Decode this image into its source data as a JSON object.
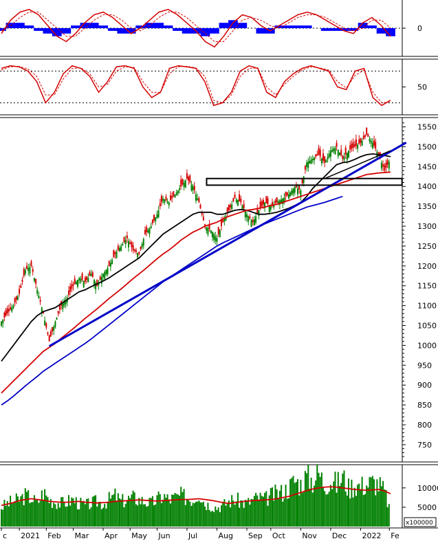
{
  "chart_data": [
    {
      "panel": "macd",
      "type": "line+bar",
      "y_ticks": [
        {
          "label": "0",
          "value": 0
        }
      ],
      "ylim": [
        -10,
        10
      ],
      "series": [
        {
          "role": "macd",
          "color": "#d40000",
          "values": [
            -2,
            3,
            6,
            7,
            5,
            1,
            -3,
            -5,
            -2,
            2,
            5,
            6,
            4,
            1,
            -2,
            0,
            3,
            6,
            7,
            5,
            2,
            -1,
            -5,
            -7,
            -3,
            2,
            5,
            4,
            1,
            -1,
            1,
            3,
            5,
            6,
            5,
            3,
            1,
            -1,
            -2,
            2,
            4,
            1,
            -3
          ]
        },
        {
          "role": "signal",
          "color": "#d40000",
          "dashed": true,
          "values": [
            -1,
            1,
            4,
            6,
            6,
            3,
            0,
            -3,
            -3,
            0,
            3,
            5,
            5,
            3,
            0,
            -1,
            1,
            4,
            6,
            6,
            4,
            1,
            -2,
            -5,
            -5,
            -1,
            3,
            4,
            3,
            1,
            0,
            2,
            4,
            5,
            5,
            4,
            2,
            0,
            -1,
            0,
            3,
            3,
            0
          ]
        },
        {
          "role": "histogram",
          "color": "#0000ff",
          "values": [
            -1,
            2,
            2,
            1,
            -1,
            -2,
            -3,
            -2,
            1,
            2,
            2,
            1,
            -1,
            -2,
            -2,
            1,
            2,
            2,
            1,
            -1,
            -2,
            -2,
            -3,
            -2,
            2,
            3,
            2,
            0,
            -2,
            -2,
            1,
            1,
            1,
            1,
            0,
            -1,
            -1,
            -1,
            -1,
            2,
            1,
            -2,
            -3
          ]
        }
      ]
    },
    {
      "panel": "stochastic",
      "type": "line",
      "y_ticks": [
        {
          "label": "50",
          "value": 50
        }
      ],
      "ylim": [
        0,
        100
      ],
      "reference_lines": [
        80,
        20
      ],
      "series": [
        {
          "role": "k",
          "color": "#d40000",
          "values": [
            85,
            90,
            88,
            80,
            60,
            20,
            40,
            75,
            90,
            85,
            70,
            40,
            60,
            88,
            90,
            85,
            50,
            30,
            40,
            85,
            90,
            88,
            85,
            60,
            15,
            20,
            40,
            80,
            90,
            85,
            40,
            30,
            60,
            75,
            85,
            90,
            85,
            80,
            50,
            45,
            80,
            85,
            30,
            15,
            25
          ]
        },
        {
          "role": "d",
          "color": "#d40000",
          "dashed": true,
          "values": [
            82,
            88,
            89,
            84,
            70,
            35,
            35,
            65,
            85,
            86,
            75,
            50,
            55,
            80,
            88,
            87,
            60,
            40,
            40,
            75,
            88,
            89,
            86,
            70,
            25,
            20,
            35,
            70,
            85,
            86,
            50,
            35,
            55,
            70,
            82,
            88,
            86,
            82,
            60,
            48,
            72,
            82,
            40,
            20,
            22
          ]
        }
      ]
    },
    {
      "panel": "price",
      "type": "candlestick",
      "y_ticks": [
        {
          "label": "1550",
          "value": 1550
        },
        {
          "label": "1500",
          "value": 1500
        },
        {
          "label": "1450",
          "value": 1450
        },
        {
          "label": "1400",
          "value": 1400
        },
        {
          "label": "1350",
          "value": 1350
        },
        {
          "label": "1300",
          "value": 1300
        },
        {
          "label": "1250",
          "value": 1250
        },
        {
          "label": "1200",
          "value": 1200
        },
        {
          "label": "1150",
          "value": 1150
        },
        {
          "label": "1100",
          "value": 1100
        },
        {
          "label": "1050",
          "value": 1050
        },
        {
          "label": "1000",
          "value": 1000
        },
        {
          "label": "950",
          "value": 950
        },
        {
          "label": "900",
          "value": 900
        },
        {
          "label": "850",
          "value": 850
        },
        {
          "label": "800",
          "value": 800
        },
        {
          "label": "750",
          "value": 750
        }
      ],
      "ylim": [
        710,
        1570
      ],
      "close": [
        1060,
        1080,
        1100,
        1130,
        1190,
        1200,
        1140,
        1080,
        1010,
        1060,
        1100,
        1120,
        1150,
        1170,
        1160,
        1180,
        1150,
        1180,
        1200,
        1230,
        1250,
        1270,
        1240,
        1230,
        1280,
        1300,
        1330,
        1370,
        1360,
        1380,
        1400,
        1420,
        1400,
        1360,
        1300,
        1290,
        1270,
        1310,
        1340,
        1370,
        1360,
        1330,
        1310,
        1340,
        1360,
        1350,
        1360,
        1370,
        1380,
        1400,
        1390,
        1460,
        1470,
        1480,
        1460,
        1490,
        1500,
        1470,
        1490,
        1500,
        1510,
        1530,
        1510,
        1480,
        1440,
        1470
      ],
      "moving_averages": [
        {
          "name": "",
          "color": "#000000",
          "values": [
            960,
            980,
            1000,
            1020,
            1040,
            1060,
            1075,
            1085,
            1090,
            1095,
            1105,
            1115,
            1125,
            1135,
            1140,
            1148,
            1155,
            1162,
            1170,
            1180,
            1190,
            1200,
            1210,
            1220,
            1235,
            1250,
            1265,
            1280,
            1290,
            1300,
            1310,
            1320,
            1330,
            1335,
            1335,
            1335,
            1330,
            1330,
            1335,
            1340,
            1342,
            1340,
            1335,
            1330,
            1330,
            1332,
            1335,
            1340,
            1345,
            1352,
            1360,
            1375,
            1395,
            1410,
            1425,
            1440,
            1455,
            1460,
            1462,
            1468,
            1475,
            1480,
            1482,
            1480,
            1478,
            1475
          ]
        },
        {
          "name": "",
          "color": "#d40000",
          "values": [
            880,
            895,
            910,
            925,
            940,
            955,
            970,
            985,
            995,
            1005,
            1018,
            1030,
            1042,
            1055,
            1068,
            1080,
            1092,
            1105,
            1118,
            1130,
            1142,
            1155,
            1168,
            1180,
            1192,
            1205,
            1218,
            1230,
            1240,
            1252,
            1265,
            1275,
            1285,
            1292,
            1300,
            1305,
            1310,
            1318,
            1325,
            1330,
            1335,
            1340,
            1342,
            1345,
            1348,
            1352,
            1355,
            1360,
            1365,
            1370,
            1375,
            1380,
            1385,
            1390,
            1395,
            1400,
            1405,
            1410,
            1415,
            1420,
            1425,
            1430,
            1432,
            1434,
            1435,
            1436
          ]
        },
        {
          "name": "",
          "color": "#0000c8",
          "values": [
            850,
            860,
            872,
            885,
            898,
            910,
            922,
            935,
            945,
            955,
            965,
            975,
            985,
            995,
            1005,
            1016,
            1028,
            1040,
            1052,
            1064,
            1076,
            1088,
            1100,
            1112,
            1124,
            1136,
            1148,
            1160,
            1170,
            1180,
            1190,
            1200,
            1210,
            1220,
            1230,
            1240,
            1250,
            1258,
            1265,
            1272,
            1279,
            1286,
            1293,
            1300,
            1306,
            1312,
            1318,
            1324,
            1330,
            1336,
            1342,
            1348,
            1352,
            1356,
            1360,
            1365,
            1370,
            1375
          ]
        }
      ],
      "trendlines": [
        {
          "role": "uptrend",
          "color": "#0000c8",
          "from": [
            8,
            998
          ],
          "to": [
            66,
            1500
          ]
        },
        {
          "role": "resistance-box",
          "color": "#000000",
          "from": [
            36,
            1420
          ],
          "to": [
            66,
            1405
          ]
        }
      ]
    },
    {
      "panel": "volume",
      "type": "bar",
      "y_ticks": [
        {
          "label": "10000",
          "value": 10000
        },
        {
          "label": "5000",
          "value": 5000
        }
      ],
      "ylim": [
        0,
        16000
      ],
      "multiplier_label": "x100000",
      "bar_color": "#008000",
      "volume": [
        5000,
        6000,
        6500,
        7000,
        8000,
        7500,
        6000,
        9000,
        7000,
        6500,
        6000,
        6500,
        7000,
        6000,
        5500,
        6000,
        6500,
        6000,
        7000,
        8000,
        6500,
        7000,
        7500,
        7000,
        6500,
        6000,
        7000,
        8000,
        7000,
        7500,
        8000,
        7500,
        7000,
        9000,
        6000,
        5500,
        5000,
        5500,
        6500,
        7000,
        6500,
        6000,
        7000,
        7500,
        7000,
        8000,
        8500,
        9000,
        10000,
        12000,
        11000,
        13000,
        12000,
        14000,
        11000,
        12000,
        11000,
        13000,
        10000,
        11000,
        10500,
        11000,
        11500,
        11000,
        9000,
        4000
      ],
      "ma": {
        "color": "#d40000",
        "values": [
          5500,
          5800,
          6200,
          6700,
          7000,
          7200,
          7000,
          6800,
          6500,
          6400,
          6300,
          6300,
          6400,
          6500,
          6300,
          6200,
          6100,
          6200,
          6300,
          6500,
          6600,
          6700,
          6800,
          6900,
          6800,
          6700,
          6600,
          6700,
          6800,
          6900,
          7000,
          7000,
          7100,
          7200,
          7000,
          6800,
          6500,
          6200,
          6000,
          6200,
          6400,
          6600,
          6700,
          6800,
          6900,
          7000,
          7200,
          7500,
          7800,
          8300,
          8800,
          9300,
          9700,
          10000,
          10200,
          10300,
          10200,
          10000,
          9800,
          9600,
          9500,
          9400,
          9500,
          9600,
          9200,
          8500
        ]
      }
    }
  ],
  "x_axis": {
    "labels": [
      "c",
      "2021",
      "Feb",
      "Mar",
      "Apr",
      "May",
      "Jun",
      "Jul",
      "Aug",
      "Sep",
      "Oct",
      "Nov",
      "Dec",
      "2022",
      "Fe"
    ],
    "positions": [
      0,
      3,
      7.5,
      12,
      17,
      21.5,
      26,
      31,
      36,
      41,
      45,
      50,
      55,
      60,
      64.8
    ]
  }
}
